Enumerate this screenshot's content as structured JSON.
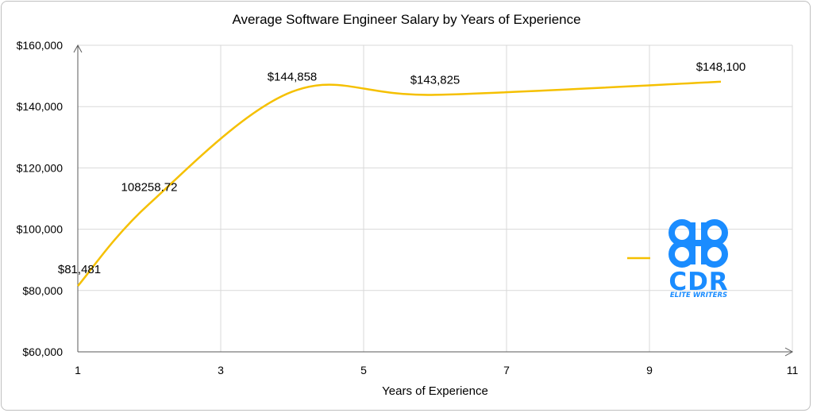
{
  "chart_data": {
    "type": "line",
    "title": "Average Software Engineer Salary by Years of Experience",
    "xlabel": "Years of Experience",
    "ylabel": "",
    "xlim": [
      1,
      11
    ],
    "ylim": [
      60000,
      160000
    ],
    "x_ticks": [
      1,
      3,
      5,
      7,
      9,
      11
    ],
    "y_ticks": [
      60000,
      80000,
      100000,
      120000,
      140000,
      160000
    ],
    "y_tick_labels": [
      "$60,000",
      "$80,000",
      "$100,000",
      "$120,000",
      "$140,000",
      "$160,000"
    ],
    "grid": true,
    "smooth": true,
    "series": [
      {
        "color": "#f5c000",
        "x": [
          1,
          2,
          4,
          6,
          10
        ],
        "y": [
          81481,
          108258.72,
          144858,
          143825,
          148100
        ],
        "labels": [
          "$81,481",
          "108258.72",
          "$144,858",
          "$143,825",
          "$148,100"
        ]
      }
    ],
    "legend": {
      "position": "right",
      "entries": [
        ""
      ]
    }
  },
  "logo": {
    "text": "CDR",
    "subtext": "ELITE WRITERS",
    "symbol": "command-key-icon",
    "color": "#1a8cff"
  }
}
